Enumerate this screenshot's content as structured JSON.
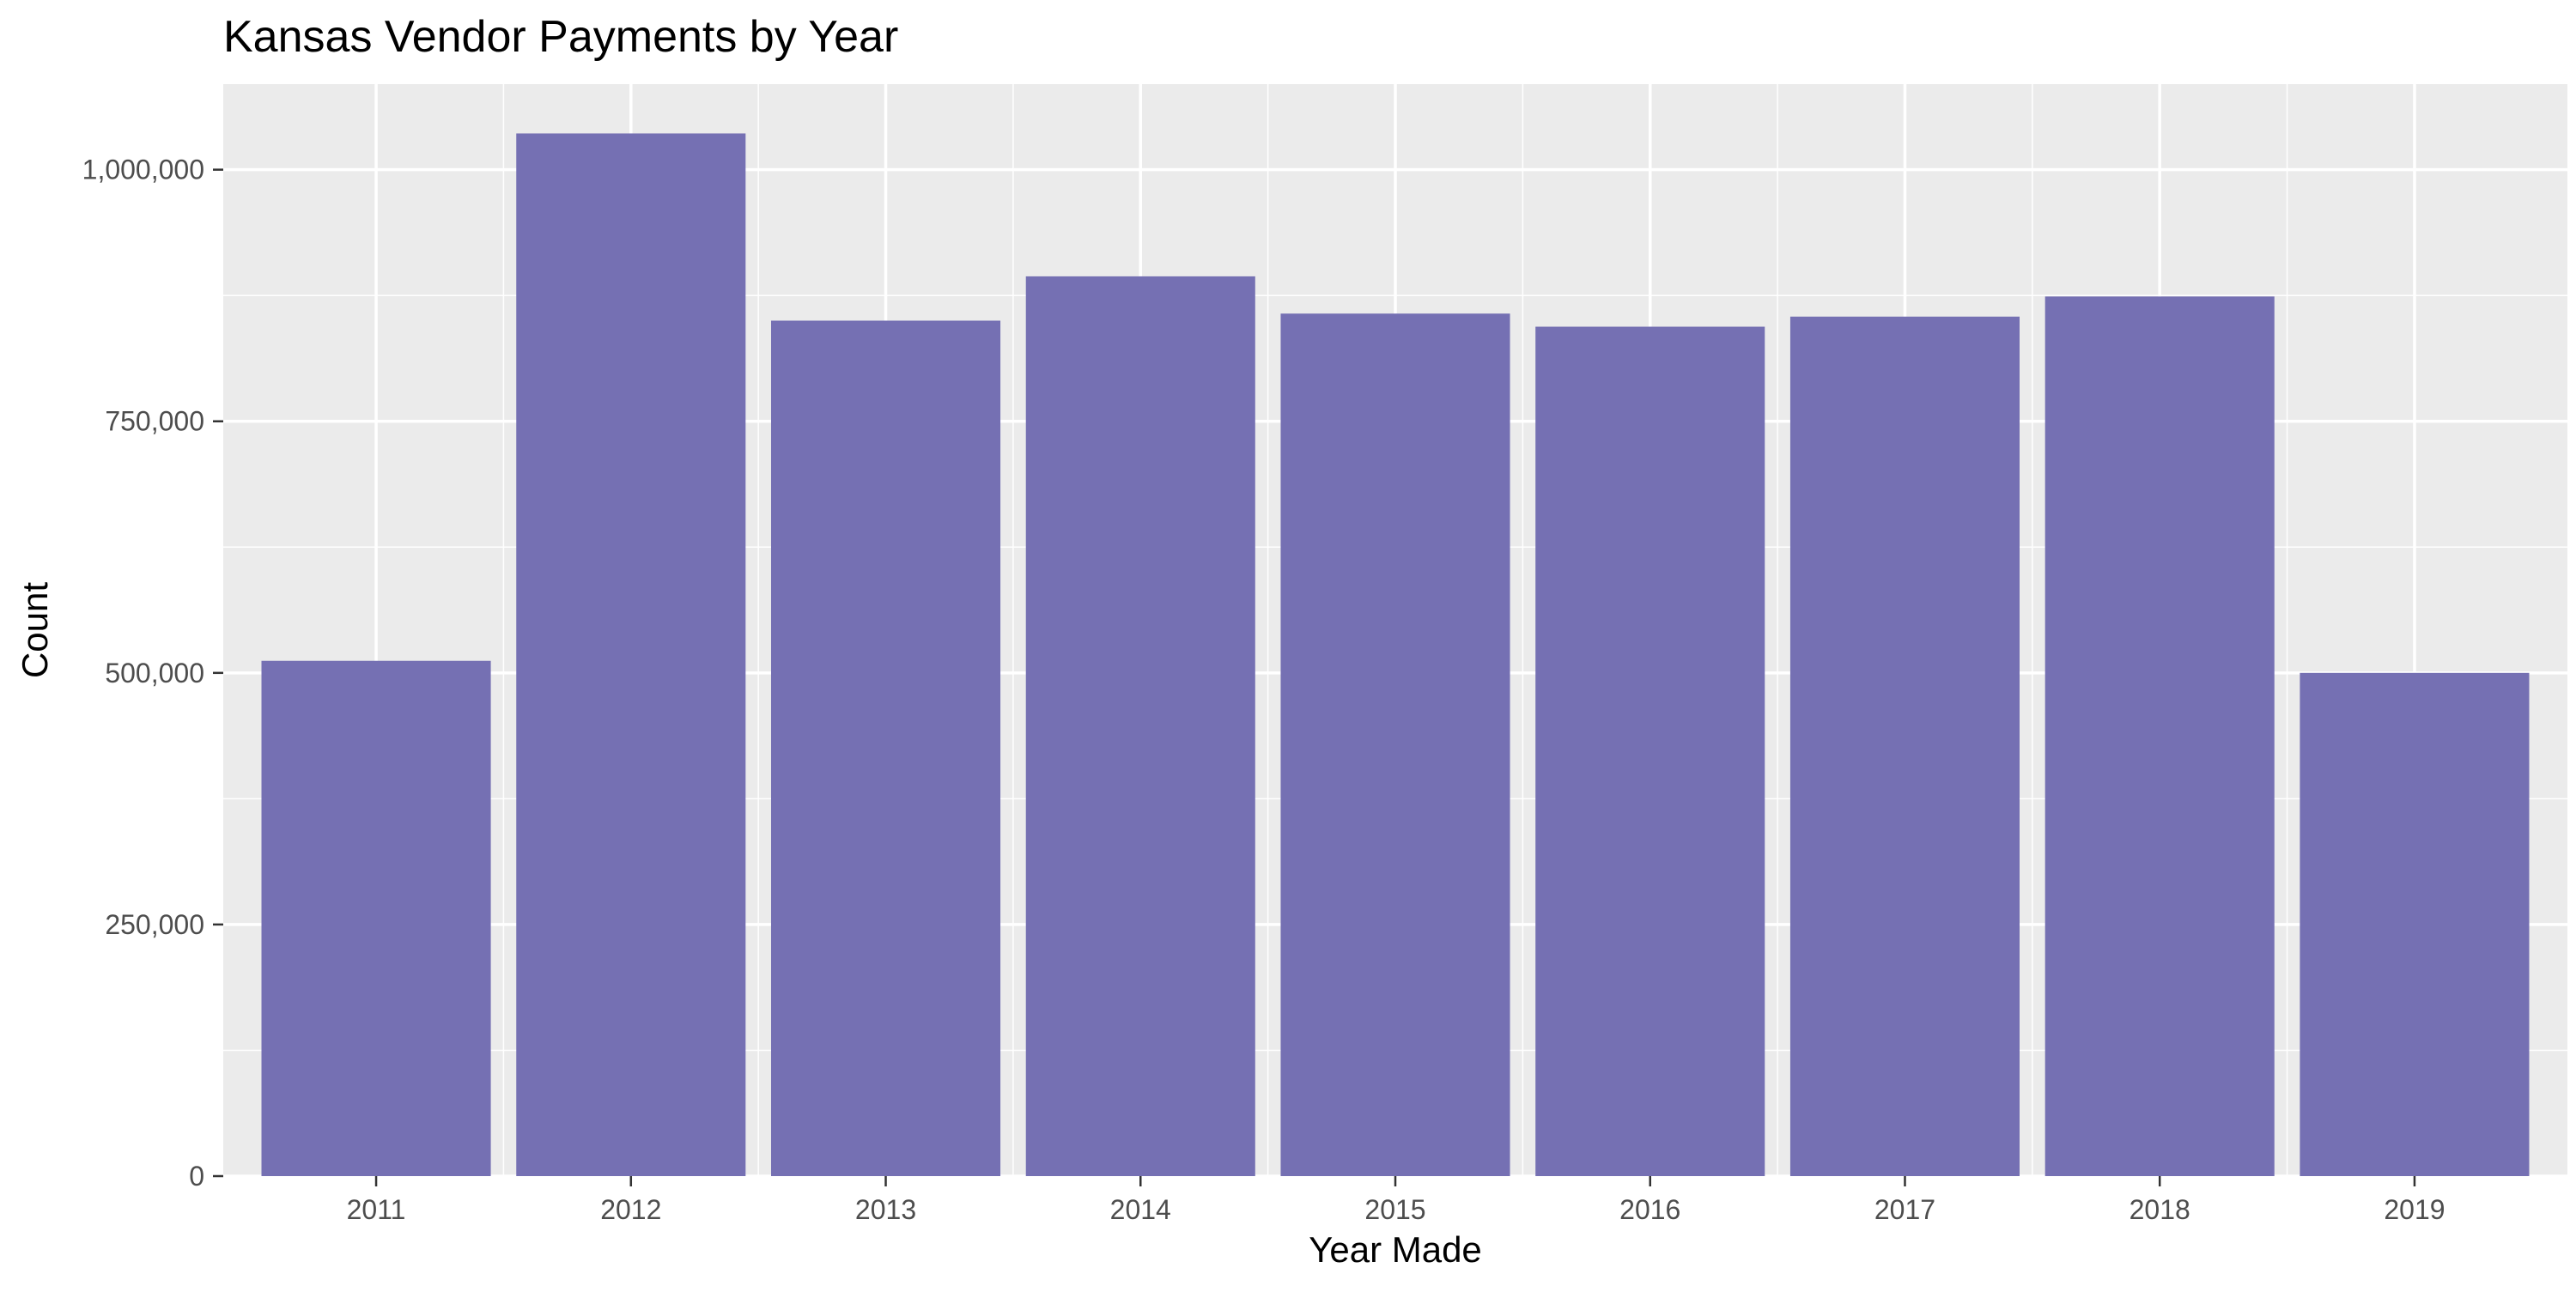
{
  "chart_data": {
    "type": "bar",
    "title": "Kansas Vendor Payments by Year",
    "xlabel": "Year Made",
    "ylabel": "Count",
    "categories": [
      "2011",
      "2012",
      "2013",
      "2014",
      "2015",
      "2016",
      "2017",
      "2018",
      "2019"
    ],
    "values": [
      512000,
      1036000,
      850000,
      894000,
      857000,
      844000,
      854000,
      874000,
      500000
    ],
    "ylim": [
      0,
      1085000
    ],
    "yticks": [
      0,
      250000,
      500000,
      750000,
      1000000
    ],
    "ytick_labels": [
      "0",
      "250,000",
      "500,000",
      "750,000",
      "1,000,000"
    ],
    "grid": true,
    "legend": "none",
    "colors": {
      "bar": "#7570B3",
      "panel_background": "#EBEBEB",
      "grid_major": "#FFFFFF",
      "tick_label": "#4D4D4D",
      "text": "#000000"
    }
  }
}
